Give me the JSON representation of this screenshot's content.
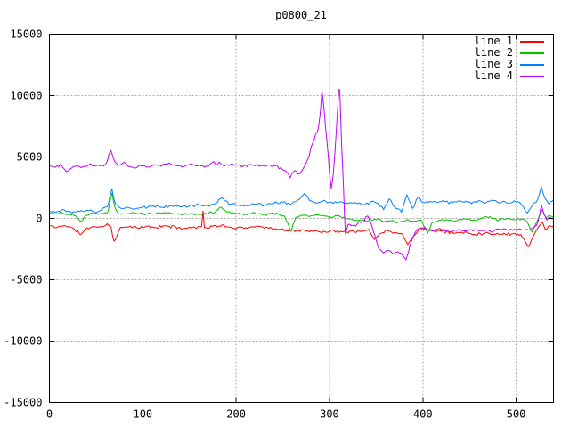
{
  "chart_data": {
    "type": "line",
    "title": "p0800_21",
    "xlabel": "",
    "ylabel": "",
    "xlim": [
      0,
      540
    ],
    "ylim": [
      -15000,
      15000
    ],
    "xticks": [
      0,
      100,
      200,
      300,
      400,
      500
    ],
    "yticks": [
      -15000,
      -10000,
      -5000,
      0,
      5000,
      10000,
      15000
    ],
    "grid": true,
    "legend_position": "top-right-inside",
    "series": [
      {
        "name": "line 1",
        "color": "#ff0000",
        "noise": 150,
        "seed": 11,
        "points": [
          [
            0,
            -600
          ],
          [
            8,
            -750
          ],
          [
            16,
            -550
          ],
          [
            25,
            -800
          ],
          [
            34,
            -1300
          ],
          [
            40,
            -800
          ],
          [
            48,
            -650
          ],
          [
            56,
            -700
          ],
          [
            62,
            -450
          ],
          [
            66,
            -700
          ],
          [
            69,
            -1850
          ],
          [
            72,
            -1500
          ],
          [
            76,
            -750
          ],
          [
            85,
            -650
          ],
          [
            95,
            -800
          ],
          [
            105,
            -650
          ],
          [
            115,
            -750
          ],
          [
            125,
            -600
          ],
          [
            135,
            -700
          ],
          [
            145,
            -800
          ],
          [
            155,
            -700
          ],
          [
            163,
            -650
          ],
          [
            164.5,
            600
          ],
          [
            166,
            -750
          ],
          [
            175,
            -650
          ],
          [
            185,
            -550
          ],
          [
            195,
            -800
          ],
          [
            205,
            -700
          ],
          [
            215,
            -750
          ],
          [
            225,
            -600
          ],
          [
            235,
            -800
          ],
          [
            245,
            -900
          ],
          [
            255,
            -1000
          ],
          [
            265,
            -950
          ],
          [
            275,
            -1050
          ],
          [
            285,
            -1000
          ],
          [
            295,
            -1100
          ],
          [
            305,
            -1000
          ],
          [
            315,
            -1050
          ],
          [
            325,
            -1000
          ],
          [
            335,
            -1100
          ],
          [
            342,
            -900
          ],
          [
            348,
            -1700
          ],
          [
            355,
            -1200
          ],
          [
            362,
            -1000
          ],
          [
            370,
            -1100
          ],
          [
            378,
            -1300
          ],
          [
            384,
            -2100
          ],
          [
            390,
            -1400
          ],
          [
            396,
            -800
          ],
          [
            405,
            -900
          ],
          [
            415,
            -1000
          ],
          [
            425,
            -1100
          ],
          [
            435,
            -1200
          ],
          [
            445,
            -1100
          ],
          [
            455,
            -1300
          ],
          [
            465,
            -1200
          ],
          [
            475,
            -1250
          ],
          [
            485,
            -1300
          ],
          [
            495,
            -1250
          ],
          [
            505,
            -1300
          ],
          [
            513,
            -2300
          ],
          [
            518,
            -1500
          ],
          [
            524,
            -700
          ],
          [
            528,
            -300
          ],
          [
            531,
            -900
          ],
          [
            535,
            -600
          ],
          [
            540,
            -700
          ]
        ]
      },
      {
        "name": "line 2",
        "color": "#00c000",
        "noise": 130,
        "seed": 22,
        "points": [
          [
            0,
            500
          ],
          [
            6,
            350
          ],
          [
            12,
            550
          ],
          [
            18,
            300
          ],
          [
            25,
            400
          ],
          [
            30,
            100
          ],
          [
            34,
            -250
          ],
          [
            38,
            200
          ],
          [
            45,
            450
          ],
          [
            52,
            350
          ],
          [
            58,
            400
          ],
          [
            63,
            600
          ],
          [
            67,
            2100
          ],
          [
            70,
            900
          ],
          [
            74,
            400
          ],
          [
            82,
            350
          ],
          [
            90,
            450
          ],
          [
            100,
            400
          ],
          [
            110,
            350
          ],
          [
            120,
            450
          ],
          [
            130,
            400
          ],
          [
            140,
            350
          ],
          [
            150,
            400
          ],
          [
            160,
            350
          ],
          [
            170,
            400
          ],
          [
            178,
            550
          ],
          [
            184,
            900
          ],
          [
            190,
            500
          ],
          [
            200,
            400
          ],
          [
            210,
            350
          ],
          [
            220,
            450
          ],
          [
            228,
            300
          ],
          [
            236,
            400
          ],
          [
            245,
            350
          ],
          [
            252,
            200
          ],
          [
            259,
            -1050
          ],
          [
            264,
            100
          ],
          [
            270,
            250
          ],
          [
            278,
            150
          ],
          [
            286,
            300
          ],
          [
            294,
            200
          ],
          [
            302,
            100
          ],
          [
            310,
            200
          ],
          [
            318,
            0
          ],
          [
            326,
            -150
          ],
          [
            334,
            -100
          ],
          [
            342,
            -200
          ],
          [
            350,
            -100
          ],
          [
            358,
            -250
          ],
          [
            366,
            -150
          ],
          [
            374,
            -300
          ],
          [
            382,
            -150
          ],
          [
            390,
            -250
          ],
          [
            398,
            -150
          ],
          [
            405,
            -1200
          ],
          [
            410,
            -300
          ],
          [
            418,
            -150
          ],
          [
            426,
            -100
          ],
          [
            434,
            -200
          ],
          [
            442,
            -100
          ],
          [
            450,
            -50
          ],
          [
            458,
            -150
          ],
          [
            466,
            100
          ],
          [
            474,
            0
          ],
          [
            482,
            -100
          ],
          [
            490,
            0
          ],
          [
            498,
            -100
          ],
          [
            506,
            -50
          ],
          [
            512,
            -300
          ],
          [
            517,
            -1100
          ],
          [
            522,
            -300
          ],
          [
            528,
            700
          ],
          [
            532,
            0
          ],
          [
            536,
            200
          ],
          [
            540,
            100
          ]
        ]
      },
      {
        "name": "line 3",
        "color": "#0080ff",
        "noise": 150,
        "seed": 33,
        "points": [
          [
            0,
            600
          ],
          [
            8,
            500
          ],
          [
            16,
            700
          ],
          [
            24,
            450
          ],
          [
            32,
            550
          ],
          [
            40,
            650
          ],
          [
            48,
            500
          ],
          [
            56,
            700
          ],
          [
            62,
            900
          ],
          [
            67,
            2400
          ],
          [
            71,
            1100
          ],
          [
            76,
            800
          ],
          [
            84,
            900
          ],
          [
            92,
            750
          ],
          [
            100,
            900
          ],
          [
            110,
            1000
          ],
          [
            120,
            900
          ],
          [
            130,
            1050
          ],
          [
            140,
            950
          ],
          [
            150,
            1000
          ],
          [
            160,
            1100
          ],
          [
            170,
            1000
          ],
          [
            178,
            1200
          ],
          [
            185,
            1700
          ],
          [
            192,
            1200
          ],
          [
            200,
            1100
          ],
          [
            210,
            1050
          ],
          [
            220,
            1150
          ],
          [
            230,
            1100
          ],
          [
            240,
            1200
          ],
          [
            250,
            1300
          ],
          [
            258,
            1100
          ],
          [
            266,
            1500
          ],
          [
            273,
            2000
          ],
          [
            280,
            1400
          ],
          [
            288,
            1300
          ],
          [
            296,
            1400
          ],
          [
            304,
            1250
          ],
          [
            312,
            1350
          ],
          [
            320,
            1200
          ],
          [
            328,
            1300
          ],
          [
            336,
            1100
          ],
          [
            344,
            1300
          ],
          [
            352,
            1200
          ],
          [
            358,
            700
          ],
          [
            364,
            1600
          ],
          [
            370,
            900
          ],
          [
            377,
            500
          ],
          [
            383,
            1900
          ],
          [
            389,
            800
          ],
          [
            395,
            1700
          ],
          [
            400,
            1300
          ],
          [
            408,
            1400
          ],
          [
            416,
            1300
          ],
          [
            424,
            1350
          ],
          [
            432,
            1300
          ],
          [
            440,
            1400
          ],
          [
            448,
            1300
          ],
          [
            456,
            1350
          ],
          [
            464,
            1300
          ],
          [
            472,
            1400
          ],
          [
            480,
            1300
          ],
          [
            488,
            1350
          ],
          [
            496,
            1300
          ],
          [
            504,
            1300
          ],
          [
            512,
            400
          ],
          [
            518,
            1200
          ],
          [
            523,
            1500
          ],
          [
            527,
            2600
          ],
          [
            531,
            1600
          ],
          [
            535,
            1200
          ],
          [
            540,
            1500
          ]
        ]
      },
      {
        "name": "line 4",
        "color": "#c000ff",
        "noise": 170,
        "seed": 44,
        "points": [
          [
            0,
            4300
          ],
          [
            6,
            4150
          ],
          [
            12,
            4400
          ],
          [
            18,
            3800
          ],
          [
            24,
            4100
          ],
          [
            30,
            4300
          ],
          [
            36,
            4200
          ],
          [
            42,
            4350
          ],
          [
            48,
            4250
          ],
          [
            54,
            4300
          ],
          [
            60,
            4400
          ],
          [
            66,
            5500
          ],
          [
            70,
            4600
          ],
          [
            74,
            4300
          ],
          [
            80,
            4600
          ],
          [
            86,
            4200
          ],
          [
            92,
            4100
          ],
          [
            98,
            4300
          ],
          [
            104,
            4200
          ],
          [
            112,
            4350
          ],
          [
            120,
            4250
          ],
          [
            128,
            4500
          ],
          [
            136,
            4300
          ],
          [
            144,
            4200
          ],
          [
            152,
            4400
          ],
          [
            160,
            4300
          ],
          [
            168,
            4250
          ],
          [
            176,
            4600
          ],
          [
            184,
            4400
          ],
          [
            192,
            4300
          ],
          [
            200,
            4350
          ],
          [
            208,
            4250
          ],
          [
            216,
            4400
          ],
          [
            224,
            4300
          ],
          [
            232,
            4250
          ],
          [
            240,
            4300
          ],
          [
            248,
            4100
          ],
          [
            254,
            3800
          ],
          [
            258,
            3300
          ],
          [
            263,
            3900
          ],
          [
            268,
            3600
          ],
          [
            273,
            4200
          ],
          [
            278,
            5000
          ],
          [
            282,
            6200
          ],
          [
            285,
            6800
          ],
          [
            288,
            7300
          ],
          [
            290,
            8500
          ],
          [
            292,
            10400
          ],
          [
            294,
            9000
          ],
          [
            297,
            6500
          ],
          [
            300,
            3800
          ],
          [
            302,
            2400
          ],
          [
            304,
            3500
          ],
          [
            306,
            5500
          ],
          [
            308,
            8000
          ],
          [
            310,
            10500
          ],
          [
            311,
            10400
          ],
          [
            313,
            6000
          ],
          [
            315,
            2500
          ],
          [
            316,
            500
          ],
          [
            317,
            -1300
          ],
          [
            320,
            -500
          ],
          [
            325,
            -600
          ],
          [
            330,
            -400
          ],
          [
            335,
            -300
          ],
          [
            341,
            200
          ],
          [
            345,
            -500
          ],
          [
            349,
            -1500
          ],
          [
            353,
            -2500
          ],
          [
            358,
            -2800
          ],
          [
            363,
            -2600
          ],
          [
            368,
            -2900
          ],
          [
            373,
            -2700
          ],
          [
            378,
            -3000
          ],
          [
            382,
            -3350
          ],
          [
            385,
            -2600
          ],
          [
            388,
            -1800
          ],
          [
            392,
            -1100
          ],
          [
            396,
            -800
          ],
          [
            404,
            -900
          ],
          [
            412,
            -1000
          ],
          [
            420,
            -900
          ],
          [
            428,
            -1050
          ],
          [
            436,
            -950
          ],
          [
            444,
            -1000
          ],
          [
            452,
            -900
          ],
          [
            460,
            -1000
          ],
          [
            468,
            -950
          ],
          [
            476,
            -1000
          ],
          [
            484,
            -900
          ],
          [
            492,
            -950
          ],
          [
            500,
            -900
          ],
          [
            506,
            -950
          ],
          [
            512,
            -900
          ],
          [
            518,
            -800
          ],
          [
            523,
            -400
          ],
          [
            527,
            1100
          ],
          [
            530,
            300
          ],
          [
            533,
            -100
          ],
          [
            536,
            100
          ],
          [
            540,
            0
          ]
        ]
      }
    ]
  },
  "layout_colors": {
    "background": "#ffffff",
    "border": "#000000",
    "grid": "#aaaaaa",
    "text": "#000000"
  }
}
